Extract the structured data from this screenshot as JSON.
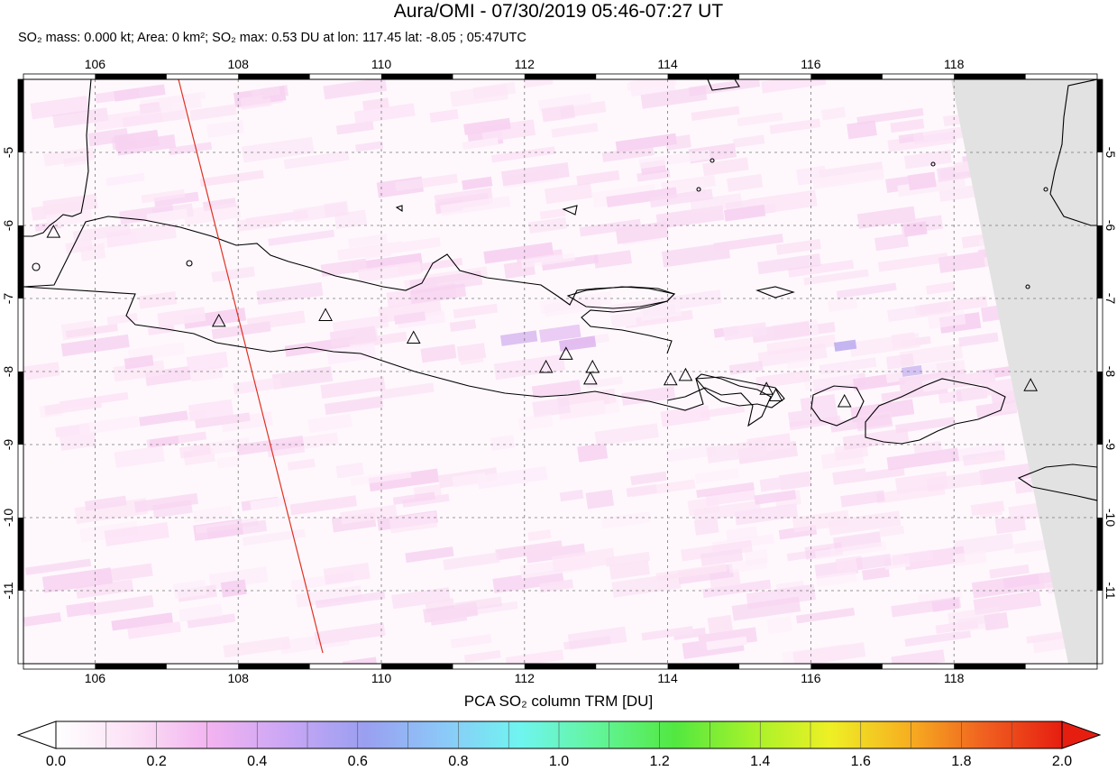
{
  "title": "Aura/OMI - 07/30/2019 05:46-07:27 UT",
  "subtitle": {
    "mass": "SO₂ mass: 0.000 kt; Area: 0 km²;",
    "max": "SO₂ max: 0.53 DU at lon: 117.45 lat: -8.05 ; 05:47UTC"
  },
  "map": {
    "lon_range": [
      105,
      120
    ],
    "lat_range": [
      -12,
      -4
    ],
    "lon_ticks": [
      "106",
      "108",
      "110",
      "112",
      "114",
      "116",
      "118"
    ],
    "lat_ticks": [
      "-5",
      "-6",
      "-7",
      "-8",
      "-9",
      "-10",
      "-11"
    ],
    "grid": "dotted",
    "volcanoes": [
      {
        "lon": 105.42,
        "lat": -6.1
      },
      {
        "lon": 107.73,
        "lat": -7.32
      },
      {
        "lon": 109.22,
        "lat": -7.24
      },
      {
        "lon": 110.45,
        "lat": -7.55
      },
      {
        "lon": 112.3,
        "lat": -7.95
      },
      {
        "lon": 112.58,
        "lat": -7.77
      },
      {
        "lon": 112.95,
        "lat": -7.95
      },
      {
        "lon": 112.92,
        "lat": -8.11
      },
      {
        "lon": 114.04,
        "lat": -8.12
      },
      {
        "lon": 114.25,
        "lat": -8.06
      },
      {
        "lon": 115.38,
        "lat": -8.25
      },
      {
        "lon": 115.51,
        "lat": -8.34
      },
      {
        "lon": 116.47,
        "lat": -8.42
      },
      {
        "lon": 119.07,
        "lat": -8.2
      }
    ],
    "orbit_edge_color": "#e03020",
    "no_data_color": "#e2e2e2"
  },
  "colorbar": {
    "title": "PCA SO₂ column TRM [DU]",
    "min": 0.0,
    "max": 2.0,
    "tick_labels": [
      "0.0",
      "0.2",
      "0.4",
      "0.6",
      "0.8",
      "1.0",
      "1.2",
      "1.4",
      "1.6",
      "1.8",
      "2.0"
    ],
    "stops": [
      "#ffffff",
      "#fbe0f5",
      "#f2b3f0",
      "#c9a6f5",
      "#9a9ff0",
      "#8cc8f8",
      "#6ff5f0",
      "#62f59a",
      "#52e840",
      "#a6f22a",
      "#eef025",
      "#f7b020",
      "#f06020",
      "#e61e10"
    ]
  }
}
